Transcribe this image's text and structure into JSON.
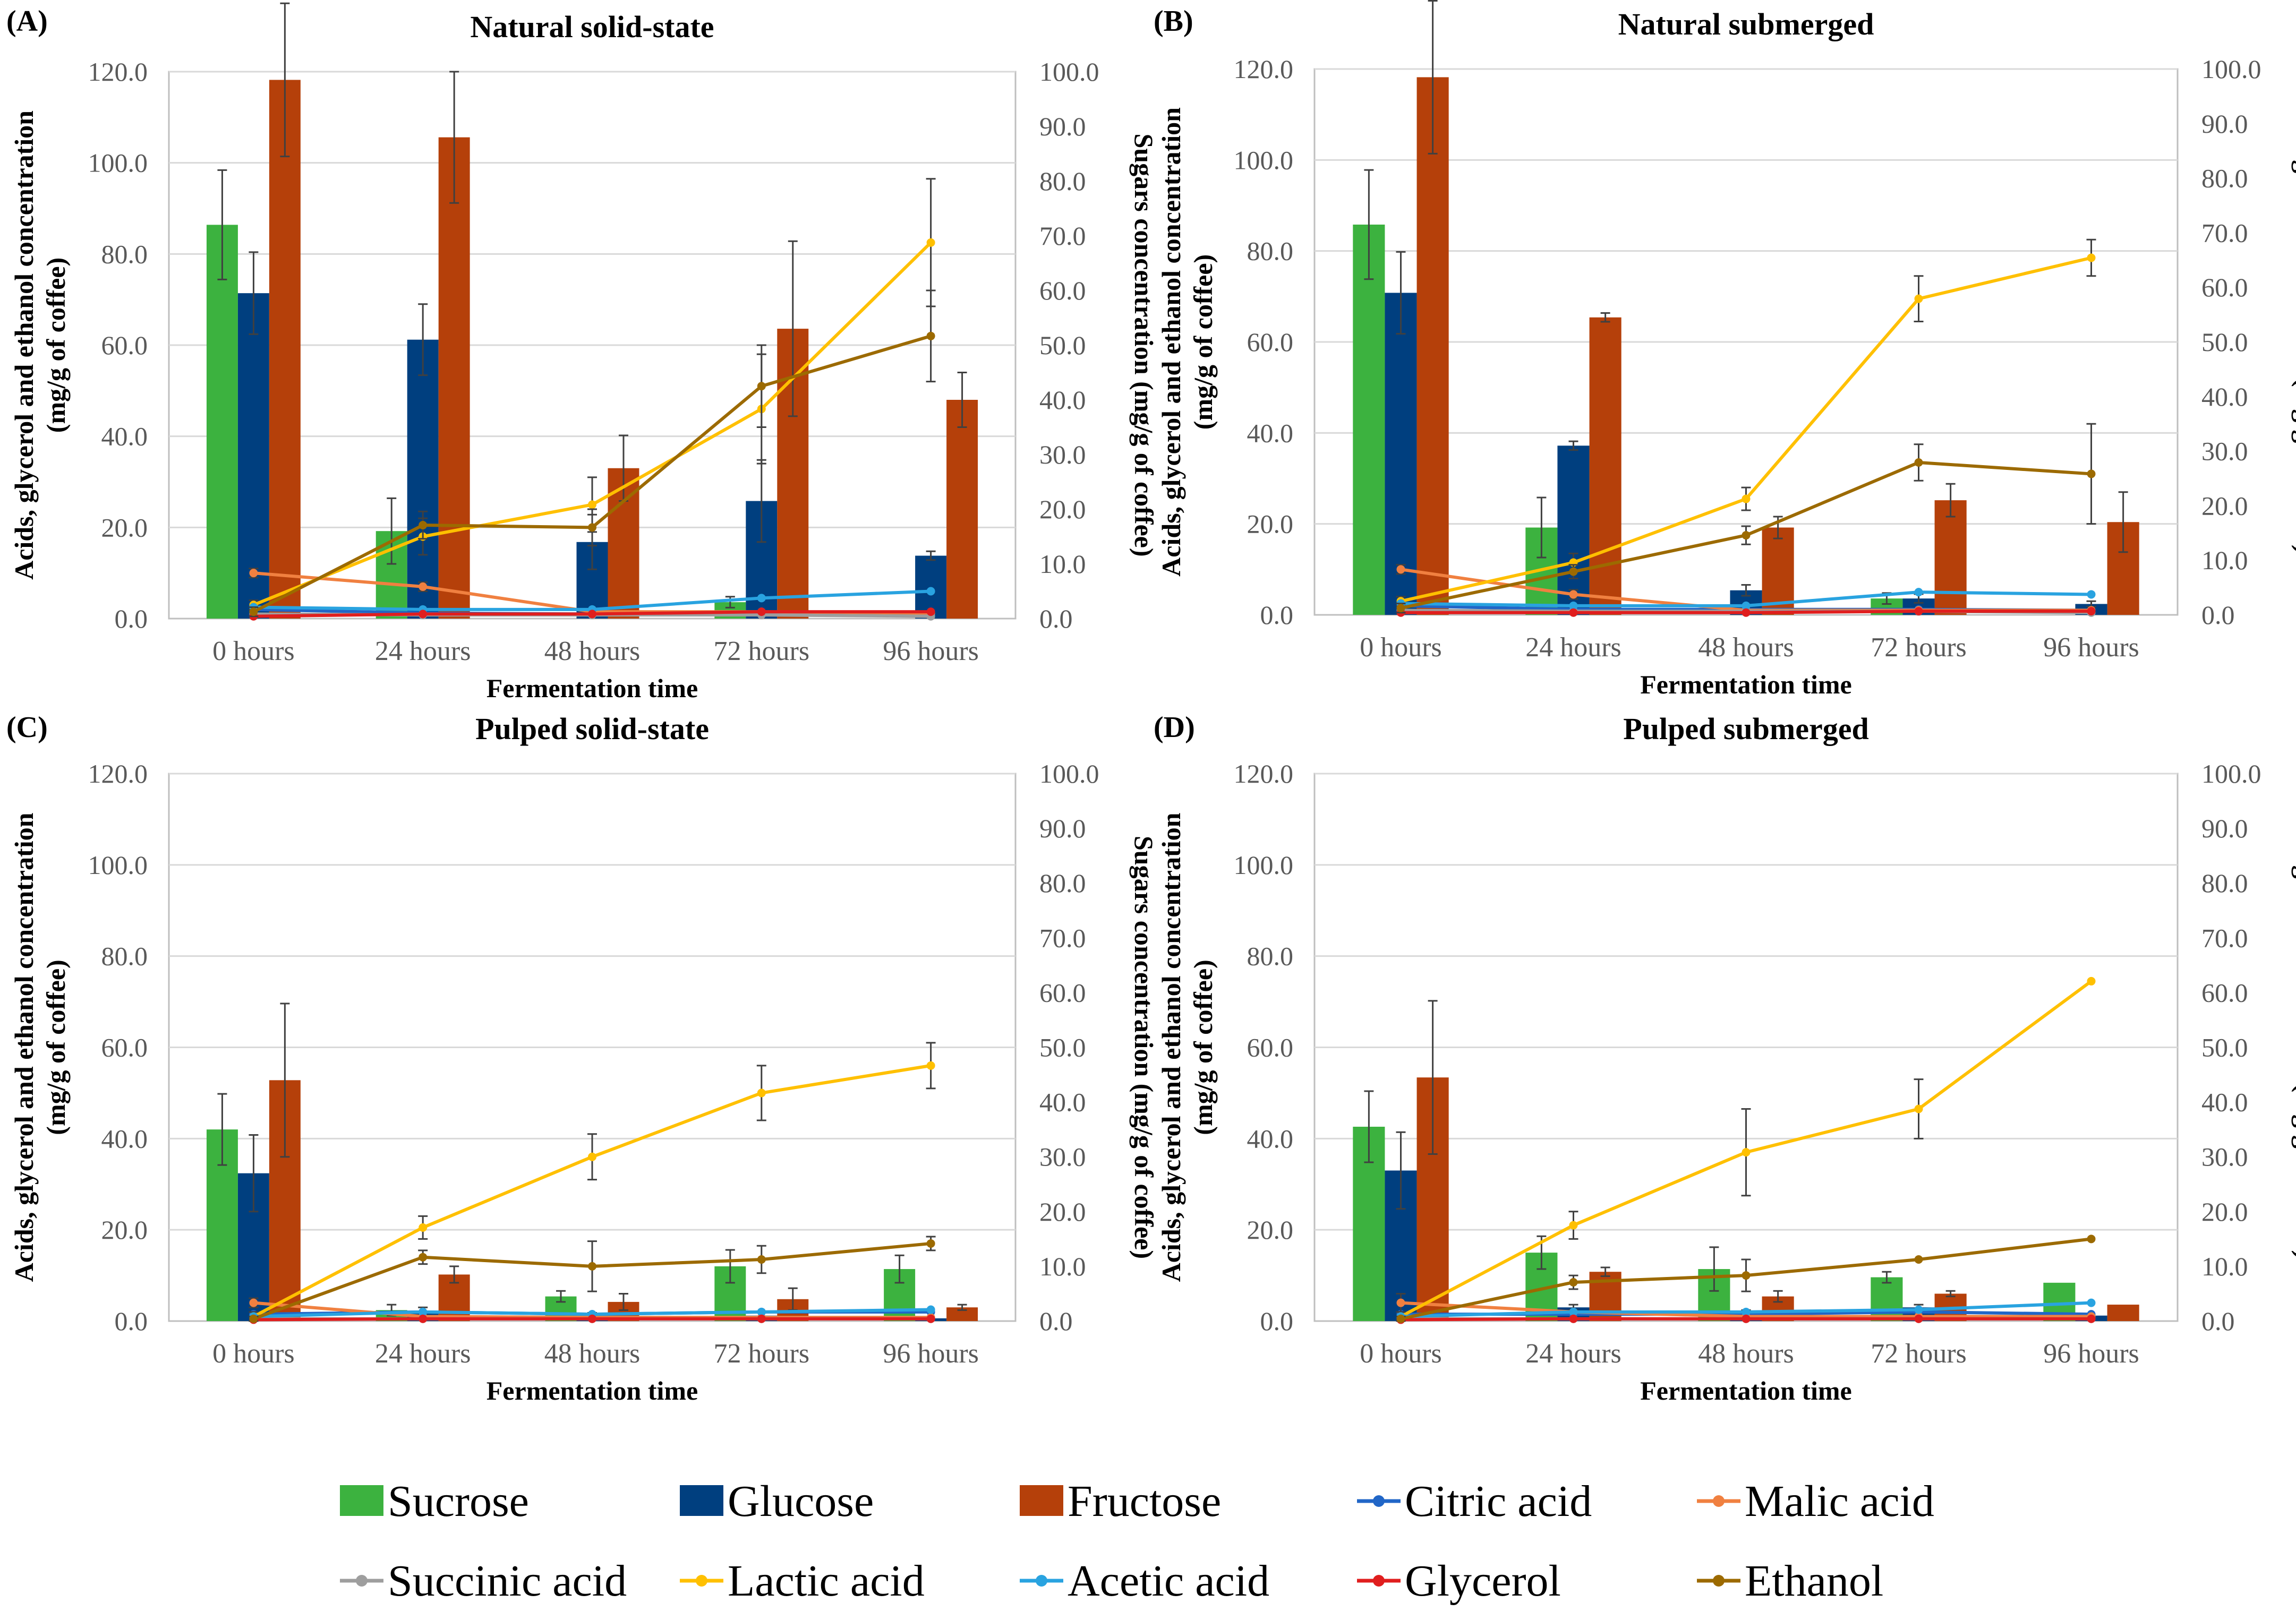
{
  "figure": {
    "legend": [
      {
        "name": "Sucrose",
        "kind": "bar",
        "color": "#3cb23f"
      },
      {
        "name": "Glucose",
        "kind": "bar",
        "color": "#003f7f"
      },
      {
        "name": "Fructose",
        "kind": "bar",
        "color": "#b5400a"
      },
      {
        "name": "Citric acid",
        "kind": "line",
        "color": "#2166c7"
      },
      {
        "name": "Malic acid",
        "kind": "line",
        "color": "#f08040"
      },
      {
        "name": "Succinic acid",
        "kind": "line",
        "color": "#9e9e9e"
      },
      {
        "name": "Lactic acid",
        "kind": "line",
        "color": "#ffc000"
      },
      {
        "name": "Acetic acid",
        "kind": "line",
        "color": "#29a3e0"
      },
      {
        "name": "Glycerol",
        "kind": "line",
        "color": "#e01e1e"
      },
      {
        "name": "Ethanol",
        "kind": "line",
        "color": "#9c6a00"
      }
    ]
  },
  "chart_data": [
    {
      "type": "bar",
      "panel_label": "(A)",
      "title": "Natural solid-state",
      "xlabel": "Fermentation time",
      "ylabel_line1": "Acids, glycerol and ethanol concentration",
      "ylabel_line2": "(mg/g of coffee)",
      "y2label": "Sugars concentration (mg/g of coffee)",
      "ylim": [
        0,
        120
      ],
      "y2lim": [
        0,
        100
      ],
      "yticks": [
        "0.0",
        "20.0",
        "40.0",
        "60.0",
        "80.0",
        "100.0",
        "120.0"
      ],
      "y2ticks": [
        "0.0",
        "10.0",
        "20.0",
        "30.0",
        "40.0",
        "50.0",
        "60.0",
        "70.0",
        "80.0",
        "90.0",
        "100.0"
      ],
      "categories": [
        "0 hours",
        "24 hours",
        "48 hours",
        "72 hours",
        "96 hours"
      ],
      "bar_series": [
        {
          "name": "Sucrose",
          "values": [
            72,
            16,
            0,
            3,
            0
          ],
          "err": [
            10,
            6,
            0,
            1,
            0
          ]
        },
        {
          "name": "Glucose",
          "values": [
            59.5,
            51,
            14,
            21.5,
            11.5
          ],
          "err": [
            7.5,
            6.5,
            5,
            7.5,
            0.8
          ]
        },
        {
          "name": "Fructose",
          "values": [
            98.5,
            88,
            27.5,
            53,
            40
          ],
          "err": [
            14,
            12,
            6,
            16,
            5
          ]
        }
      ],
      "line_series": [
        {
          "name": "Citric acid",
          "values": [
            2,
            1.2,
            1,
            1.2,
            1
          ],
          "err": [
            0,
            0,
            0,
            0,
            0
          ]
        },
        {
          "name": "Malic acid",
          "values": [
            10,
            7,
            1.5,
            1.5,
            1.2
          ],
          "err": [
            1,
            1,
            0,
            0,
            0
          ]
        },
        {
          "name": "Succinic acid",
          "values": [
            1,
            0.8,
            0.8,
            0.8,
            0.5
          ],
          "err": [
            0,
            0,
            0,
            0,
            0
          ]
        },
        {
          "name": "Lactic acid",
          "values": [
            3,
            18,
            25,
            46,
            82.5
          ],
          "err": [
            1,
            4,
            6,
            12,
            14
          ]
        },
        {
          "name": "Acetic acid",
          "values": [
            2.5,
            2,
            2,
            4.5,
            6
          ],
          "err": [
            0,
            0,
            0,
            0,
            0
          ]
        },
        {
          "name": "Glycerol",
          "values": [
            0.5,
            1,
            1,
            1.5,
            1.5
          ],
          "err": [
            0,
            0,
            0,
            0,
            0
          ]
        },
        {
          "name": "Ethanol",
          "values": [
            1.5,
            20.5,
            20,
            51,
            62
          ],
          "err": [
            1,
            3,
            4,
            9,
            10
          ]
        }
      ]
    },
    {
      "type": "bar",
      "panel_label": "(B)",
      "title": "Natural submerged",
      "xlabel": "Fermentation time",
      "ylabel_line1": "Acids, glycerol and ethanol concentration",
      "ylabel_line2": "(mg/g of coffee)",
      "y2label": "Sugars concentration (mg/g of coffee)",
      "ylim": [
        0,
        120
      ],
      "y2lim": [
        0,
        100
      ],
      "yticks": [
        "0.0",
        "20.0",
        "40.0",
        "60.0",
        "80.0",
        "100.0",
        "120.0"
      ],
      "y2ticks": [
        "0.0",
        "10.0",
        "20.0",
        "30.0",
        "40.0",
        "50.0",
        "60.0",
        "70.0",
        "80.0",
        "90.0",
        "100.0"
      ],
      "categories": [
        "0 hours",
        "24 hours",
        "48 hours",
        "72 hours",
        "96 hours"
      ],
      "bar_series": [
        {
          "name": "Sucrose",
          "values": [
            71.5,
            16,
            0,
            3,
            0
          ],
          "err": [
            10,
            5.5,
            0,
            1,
            0
          ]
        },
        {
          "name": "Glucose",
          "values": [
            59,
            31,
            4.5,
            3,
            2
          ],
          "err": [
            7.5,
            0.8,
            1,
            0.8,
            0.5
          ]
        },
        {
          "name": "Fructose",
          "values": [
            98.5,
            54.5,
            16,
            21,
            17
          ],
          "err": [
            14,
            0.8,
            2,
            3,
            5.5
          ]
        }
      ],
      "line_series": [
        {
          "name": "Citric acid",
          "values": [
            2,
            1.2,
            1.2,
            1.2,
            1
          ],
          "err": [
            0,
            0,
            0,
            0,
            0
          ]
        },
        {
          "name": "Malic acid",
          "values": [
            10,
            4.5,
            1,
            1,
            1
          ],
          "err": [
            1,
            1,
            0,
            0,
            0
          ]
        },
        {
          "name": "Succinic acid",
          "values": [
            1,
            0.8,
            0.8,
            0.8,
            0.5
          ],
          "err": [
            0,
            0,
            0,
            0,
            0
          ]
        },
        {
          "name": "Lactic acid",
          "values": [
            3,
            11.5,
            25.5,
            69.5,
            78.5
          ],
          "err": [
            1,
            2,
            2.5,
            5,
            4
          ]
        },
        {
          "name": "Acetic acid",
          "values": [
            2.5,
            2,
            2,
            5,
            4.5
          ],
          "err": [
            0,
            0,
            0,
            0,
            0
          ]
        },
        {
          "name": "Glycerol",
          "values": [
            0.5,
            0.5,
            0.5,
            0.8,
            0.8
          ],
          "err": [
            0,
            0,
            0,
            0,
            0
          ]
        },
        {
          "name": "Ethanol",
          "values": [
            1.5,
            9.5,
            17.5,
            33.5,
            31
          ],
          "err": [
            1,
            1.5,
            2,
            4,
            11
          ]
        }
      ]
    },
    {
      "type": "bar",
      "panel_label": "(C)",
      "title": "Pulped solid-state",
      "xlabel": "Fermentation time",
      "ylabel_line1": "Acids, glycerol and ethanol concentration",
      "ylabel_line2": "(mg/g of coffee)",
      "y2label": "Sugars concentration (mg/g of coffee)",
      "ylim": [
        0,
        120
      ],
      "y2lim": [
        0,
        100
      ],
      "yticks": [
        "0.0",
        "20.0",
        "40.0",
        "60.0",
        "80.0",
        "100.0",
        "120.0"
      ],
      "y2ticks": [
        "0.0",
        "10.0",
        "20.0",
        "30.0",
        "40.0",
        "50.0",
        "60.0",
        "70.0",
        "80.0",
        "90.0",
        "100.0"
      ],
      "categories": [
        "0 hours",
        "24 hours",
        "48 hours",
        "72 hours",
        "96 hours"
      ],
      "bar_series": [
        {
          "name": "Sucrose",
          "values": [
            35,
            2,
            4.5,
            10,
            9.5
          ],
          "err": [
            6.5,
            1,
            1,
            3,
            2.5
          ]
        },
        {
          "name": "Glucose",
          "values": [
            27,
            1.5,
            1,
            1,
            0.5
          ],
          "err": [
            7,
            1,
            0.5,
            0.5,
            0
          ]
        },
        {
          "name": "Fructose",
          "values": [
            44,
            8.5,
            3.5,
            4,
            2.5
          ],
          "err": [
            14,
            1.5,
            1.5,
            2,
            0.5
          ]
        }
      ],
      "line_series": [
        {
          "name": "Citric acid",
          "values": [
            1.5,
            2,
            1.5,
            2,
            2
          ],
          "err": [
            0,
            0,
            0,
            0,
            0
          ]
        },
        {
          "name": "Malic acid",
          "values": [
            4,
            1,
            0.8,
            0.8,
            0.8
          ],
          "err": [
            1,
            0,
            0,
            0,
            0
          ]
        },
        {
          "name": "Succinic acid",
          "values": [
            0.5,
            0.5,
            0.5,
            0.5,
            0.5
          ],
          "err": [
            0,
            0,
            0,
            0,
            0
          ]
        },
        {
          "name": "Lactic acid",
          "values": [
            1,
            20.5,
            36,
            50,
            56
          ],
          "err": [
            1,
            2.5,
            5,
            6,
            5
          ]
        },
        {
          "name": "Acetic acid",
          "values": [
            1,
            2,
            1.5,
            2,
            2.5
          ],
          "err": [
            0,
            0,
            0,
            0,
            0
          ]
        },
        {
          "name": "Glycerol",
          "values": [
            0.3,
            0.5,
            0.5,
            0.5,
            0.5
          ],
          "err": [
            0,
            0,
            0,
            0,
            0
          ]
        },
        {
          "name": "Ethanol",
          "values": [
            0.5,
            14,
            12,
            13.5,
            17
          ],
          "err": [
            0.5,
            1.5,
            5.5,
            3,
            1.5
          ]
        }
      ]
    },
    {
      "type": "bar",
      "panel_label": "(D)",
      "title": "Pulped submerged",
      "xlabel": "Fermentation time",
      "ylabel_line1": "Acids, glycerol and ethanol concentration",
      "ylabel_line2": "(mg/g of coffee)",
      "y2label": "Sugars concentration (mg/g of coffee)",
      "ylim": [
        0,
        120
      ],
      "y2lim": [
        0,
        100
      ],
      "yticks": [
        "0.0",
        "20.0",
        "40.0",
        "60.0",
        "80.0",
        "100.0",
        "120.0"
      ],
      "y2ticks": [
        "0.0",
        "10.0",
        "20.0",
        "30.0",
        "40.0",
        "50.0",
        "60.0",
        "70.0",
        "80.0",
        "90.0",
        "100.0"
      ],
      "categories": [
        "0 hours",
        "24 hours",
        "48 hours",
        "72 hours",
        "96 hours"
      ],
      "bar_series": [
        {
          "name": "Sucrose",
          "values": [
            35.5,
            12.5,
            9.5,
            8,
            7
          ],
          "err": [
            6.5,
            3,
            4,
            1,
            0
          ]
        },
        {
          "name": "Glucose",
          "values": [
            27.5,
            2.5,
            1.5,
            2.5,
            1
          ],
          "err": [
            7,
            0.5,
            0.5,
            0.5,
            0
          ]
        },
        {
          "name": "Fructose",
          "values": [
            44.5,
            9,
            4.5,
            5,
            3
          ],
          "err": [
            14,
            0.8,
            1,
            0.5,
            0
          ]
        }
      ],
      "line_series": [
        {
          "name": "Citric acid",
          "values": [
            1.5,
            1.5,
            1.5,
            2,
            1.5
          ],
          "err": [
            0,
            0,
            0,
            0,
            0
          ]
        },
        {
          "name": "Malic acid",
          "values": [
            4,
            2,
            1,
            1,
            1
          ],
          "err": [
            2,
            0,
            0,
            0,
            0
          ]
        },
        {
          "name": "Succinic acid",
          "values": [
            0.5,
            0.5,
            0.5,
            0.5,
            0.5
          ],
          "err": [
            0,
            0,
            0,
            0,
            0
          ]
        },
        {
          "name": "Lactic acid",
          "values": [
            1,
            21,
            37,
            46.5,
            74.5
          ],
          "err": [
            1,
            3,
            9.5,
            6.5,
            0
          ]
        },
        {
          "name": "Acetic acid",
          "values": [
            1,
            2,
            2,
            2.5,
            4
          ],
          "err": [
            0,
            0,
            0,
            0,
            0
          ]
        },
        {
          "name": "Glycerol",
          "values": [
            0.3,
            0.5,
            0.5,
            0.5,
            0.5
          ],
          "err": [
            0,
            0,
            0,
            0,
            0
          ]
        },
        {
          "name": "Ethanol",
          "values": [
            0.5,
            8.5,
            10,
            13.5,
            18
          ],
          "err": [
            0.5,
            1.5,
            3.5,
            0,
            0
          ]
        }
      ]
    }
  ]
}
